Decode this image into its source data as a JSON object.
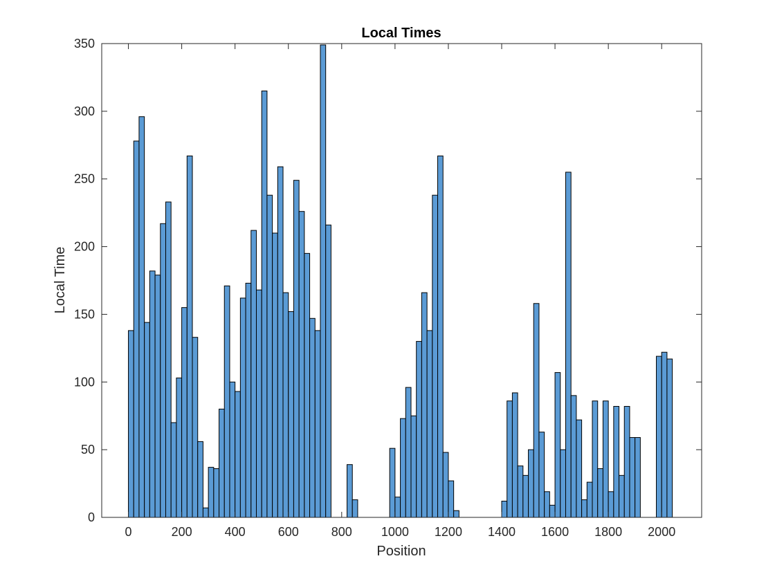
{
  "chart_data": {
    "type": "bar",
    "title": "Local Times",
    "xlabel": "Position",
    "ylabel": "Local Time",
    "xlim": [
      -100,
      2150
    ],
    "ylim": [
      0,
      350
    ],
    "xticks": [
      0,
      200,
      400,
      600,
      800,
      1000,
      1200,
      1400,
      1600,
      1800,
      2000
    ],
    "yticks": [
      0,
      50,
      100,
      150,
      200,
      250,
      300,
      350
    ],
    "bin_width": 20,
    "bar_color": "#5b9bd5",
    "edge_color": "#000000",
    "grid": false,
    "x": [
      0,
      20,
      40,
      60,
      80,
      100,
      120,
      140,
      160,
      180,
      200,
      220,
      240,
      260,
      280,
      300,
      320,
      340,
      360,
      380,
      400,
      420,
      440,
      460,
      480,
      500,
      520,
      540,
      560,
      580,
      600,
      620,
      640,
      660,
      680,
      700,
      720,
      740,
      760,
      780,
      800,
      820,
      840,
      860,
      880,
      900,
      920,
      940,
      960,
      980,
      1000,
      1020,
      1040,
      1060,
      1080,
      1100,
      1120,
      1140,
      1160,
      1180,
      1200,
      1220,
      1240,
      1260,
      1280,
      1300,
      1320,
      1340,
      1360,
      1380,
      1400,
      1420,
      1440,
      1460,
      1480,
      1500,
      1520,
      1540,
      1560,
      1580,
      1600,
      1620,
      1640,
      1660,
      1680,
      1700,
      1720,
      1740,
      1760,
      1780,
      1800,
      1820,
      1840,
      1860,
      1880,
      1900,
      1920,
      1940,
      1960,
      1980,
      2000,
      2020
    ],
    "values": [
      138,
      278,
      296,
      144,
      182,
      179,
      217,
      233,
      70,
      103,
      155,
      267,
      133,
      56,
      7,
      37,
      36,
      80,
      171,
      100,
      93,
      162,
      173,
      212,
      168,
      315,
      238,
      210,
      259,
      166,
      152,
      249,
      226,
      195,
      147,
      138,
      349,
      216,
      0,
      0,
      0,
      39,
      13,
      0,
      0,
      0,
      0,
      0,
      0,
      51,
      15,
      73,
      96,
      75,
      130,
      166,
      138,
      238,
      267,
      48,
      27,
      5,
      0,
      0,
      0,
      0,
      0,
      0,
      0,
      0,
      12,
      86,
      92,
      38,
      31,
      50,
      158,
      63,
      19,
      9,
      107,
      50,
      255,
      90,
      72,
      13,
      26,
      86,
      36,
      86,
      19,
      82,
      31,
      82,
      59,
      59,
      0,
      0,
      0,
      119,
      122,
      117
    ]
  }
}
